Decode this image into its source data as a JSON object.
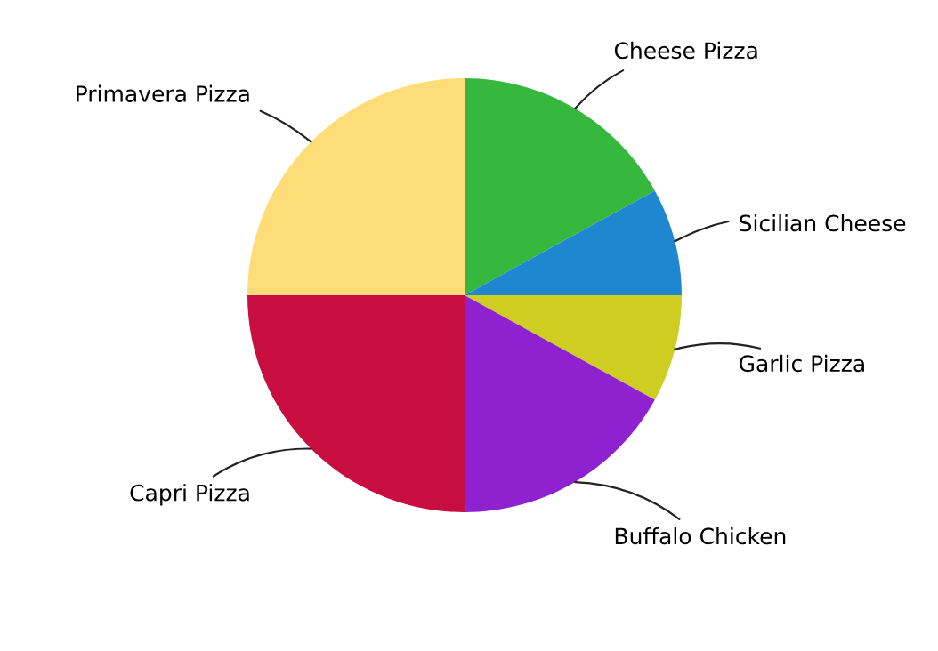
{
  "chart_data": {
    "type": "pie",
    "categories": [
      "Cheese Pizza",
      "Sicilian Cheese",
      "Garlic Pizza",
      "Buffalo Chicken",
      "Capri Pizza",
      "Primavera Pizza"
    ],
    "values": [
      17,
      8,
      8,
      17,
      25,
      25
    ],
    "colors": [
      "#36b83f",
      "#1f86d0",
      "#cfcd22",
      "#8e22d0",
      "#c80e40",
      "#fedd78"
    ]
  }
}
